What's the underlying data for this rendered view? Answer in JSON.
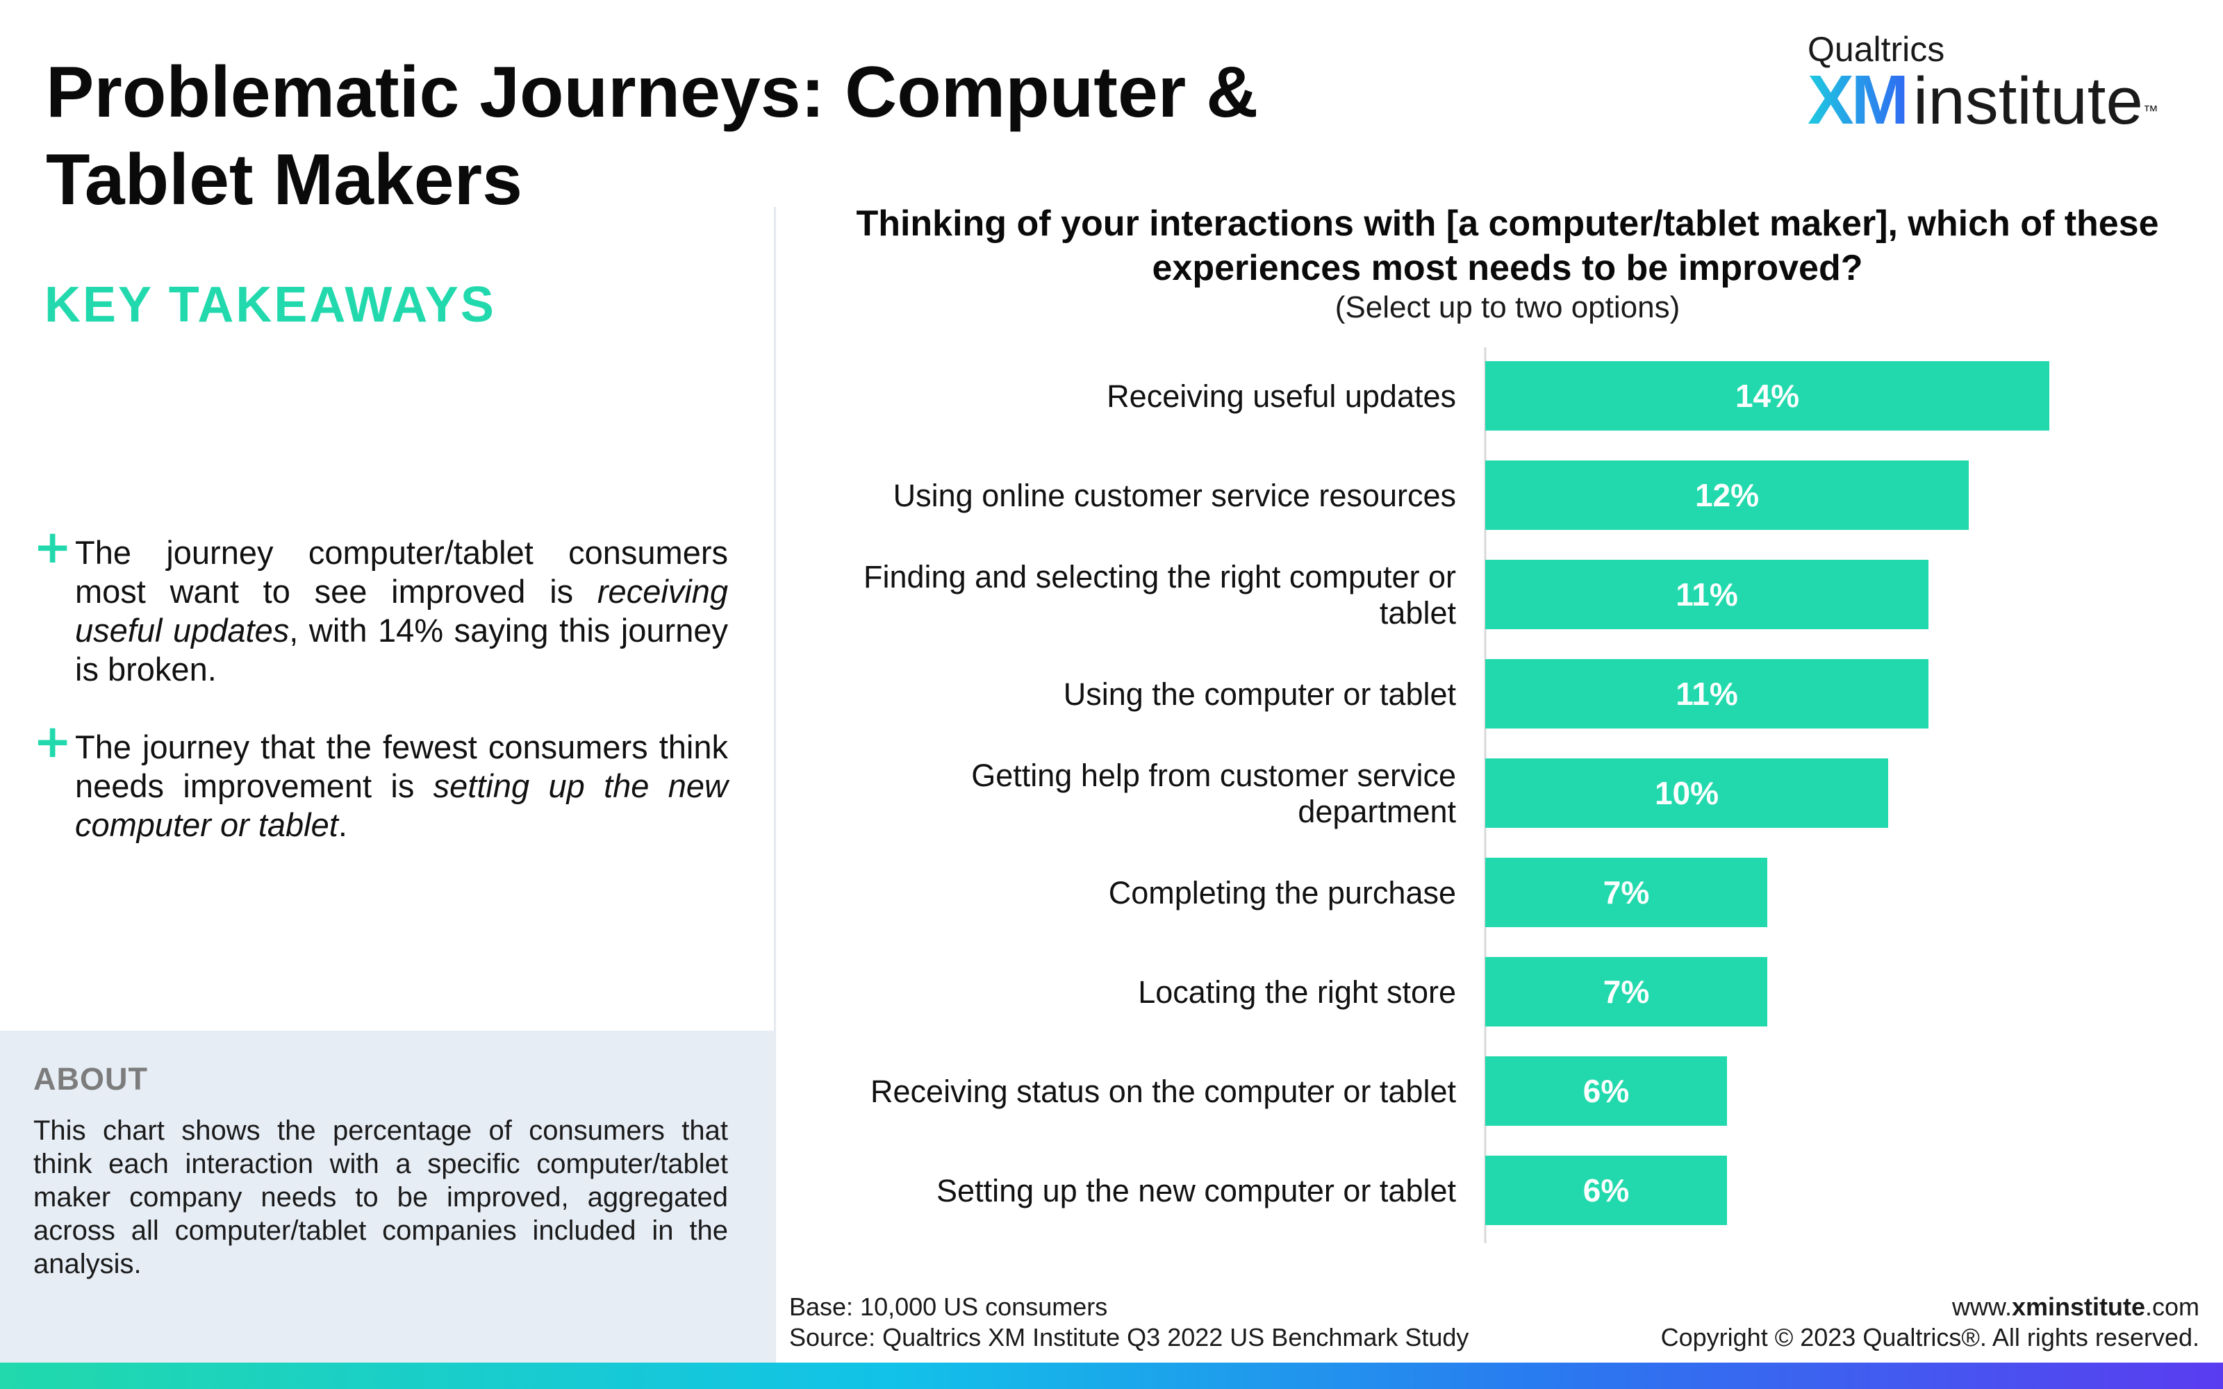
{
  "header": {
    "title": "Problematic Journeys: Computer & Tablet Makers",
    "logo_small": "Qualtrics",
    "logo_xm": "XM",
    "logo_institute": "institute",
    "logo_tm": "™"
  },
  "takeaways": {
    "heading": "KEY TAKEAWAYS",
    "items": [
      {
        "pre": "The journey computer/tablet consumers most want to see improved is ",
        "em": "receiving useful updates",
        "post": ", with 14% saying this journey is broken."
      },
      {
        "pre": "The journey that the fewest consumers think needs improvement is ",
        "em": "setting up the new computer or tablet",
        "post": "."
      }
    ],
    "bullet": "+"
  },
  "about": {
    "heading": "ABOUT",
    "text": "This chart shows the percentage of consumers that think each interaction with a specific computer/tablet maker company needs to be improved, aggregated across all computer/tablet companies included in the analysis."
  },
  "chart_data": {
    "type": "bar",
    "orientation": "horizontal",
    "title": "Thinking of your interactions with [a computer/tablet maker], which of these experiences most needs to be improved?",
    "subtitle": "(Select up to two options)",
    "categories": [
      [
        "Receiving useful updates"
      ],
      [
        "Using online customer service resources"
      ],
      [
        "Finding and selecting the right computer or",
        "tablet"
      ],
      [
        "Using the computer or tablet"
      ],
      [
        "Getting help from customer service",
        "department"
      ],
      [
        "Completing the purchase"
      ],
      [
        "Locating the right store"
      ],
      [
        "Receiving status on the computer or tablet"
      ],
      [
        "Setting up the new computer or tablet"
      ]
    ],
    "values": [
      14,
      12,
      11,
      11,
      10,
      7,
      7,
      6,
      6
    ],
    "value_labels": [
      "14%",
      "12%",
      "11%",
      "11%",
      "10%",
      "7%",
      "7%",
      "6%",
      "6%"
    ],
    "units": "%",
    "bar_color": "#21d9ac",
    "label_color": "#ffffff"
  },
  "footer": {
    "base": "Base: 10,000 US consumers",
    "source": "Source: Qualtrics XM Institute Q3 2022 US Benchmark Study",
    "url_prefix": "www.",
    "url_bold": "xminstitute",
    "url_suffix": ".com",
    "copyright": "Copyright © 2023 Qualtrics®. All rights reserved."
  }
}
